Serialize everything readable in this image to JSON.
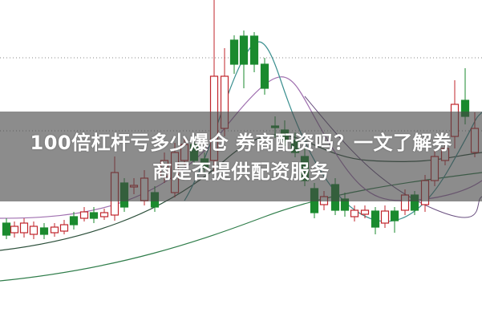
{
  "article": {
    "title_line1": "100倍杠杆亏多少爆仓 券商配资吗？一文了解券",
    "title_line2": "商是否提供配资服务"
  },
  "colors": {
    "up_candle": "#c0252b",
    "down_candle": "#1a8a2e",
    "overlay": "#464646",
    "title_text": "#ffffff"
  }
}
